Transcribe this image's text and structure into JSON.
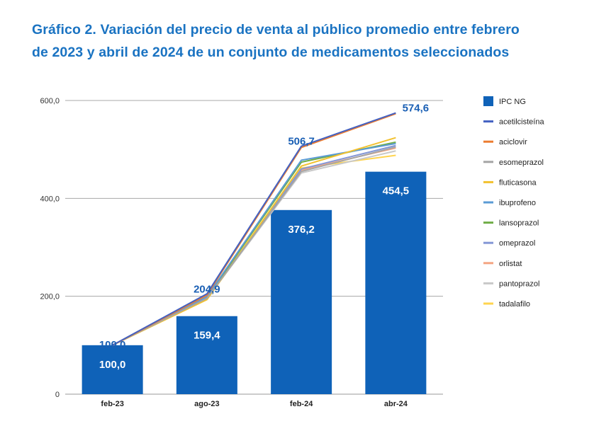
{
  "chart_data": {
    "type": "bar",
    "title_lines": [
      "Gráfico 2. Variación del precio de venta al público promedio entre febrero",
      "de 2023 y abril de 2024 de un conjunto de medicamentos seleccionados"
    ],
    "categories": [
      "feb-23",
      "ago-23",
      "feb-24",
      "abr-24"
    ],
    "ylim": [
      0,
      600
    ],
    "y_ticks": [
      0,
      200,
      400,
      600
    ],
    "y_tick_labels": [
      "0",
      "200,0",
      "400,0",
      "600,0"
    ],
    "grid": true,
    "legend_position": "right",
    "series": [
      {
        "name": "IPC NG",
        "type": "bar",
        "color": "#0f62b8",
        "values": [
          100.0,
          159.4,
          376.2,
          454.5
        ],
        "labels": [
          "100,0",
          "159,4",
          "376,2",
          "454,5"
        ]
      },
      {
        "name": "acetilcisteína",
        "type": "line",
        "color": "#4361c2",
        "values": [
          100.0,
          204.9,
          506.7,
          574.6
        ],
        "labels": [
          "100,0",
          "204,9",
          "506,7",
          "574,6"
        ]
      },
      {
        "name": "aciclovir",
        "type": "line",
        "color": "#ec7c30",
        "values": [
          100,
          202,
          504,
          573
        ]
      },
      {
        "name": "esomeprazol",
        "type": "line",
        "color": "#a5a5a5",
        "values": [
          100,
          196,
          455,
          505
        ]
      },
      {
        "name": "fluticasona",
        "type": "line",
        "color": "#f2c12e",
        "values": [
          100,
          193,
          466,
          524
        ]
      },
      {
        "name": "ibuprofeno",
        "type": "line",
        "color": "#5b9bd5",
        "values": [
          100,
          199,
          478,
          512
        ]
      },
      {
        "name": "lansoprazol",
        "type": "line",
        "color": "#70ad47",
        "values": [
          100,
          197,
          474,
          515
        ]
      },
      {
        "name": "omeprazol",
        "type": "line",
        "color": "#8497d6",
        "values": [
          100,
          196,
          460,
          508
        ]
      },
      {
        "name": "orlistat",
        "type": "line",
        "color": "#f4a582",
        "values": [
          100,
          195,
          458,
          503
        ]
      },
      {
        "name": "pantoprazol",
        "type": "line",
        "color": "#c9c9c9",
        "values": [
          100,
          195,
          452,
          497
        ]
      },
      {
        "name": "tadalafilo",
        "type": "line",
        "color": "#ffd44f",
        "values": [
          100,
          194,
          462,
          488
        ]
      }
    ]
  }
}
